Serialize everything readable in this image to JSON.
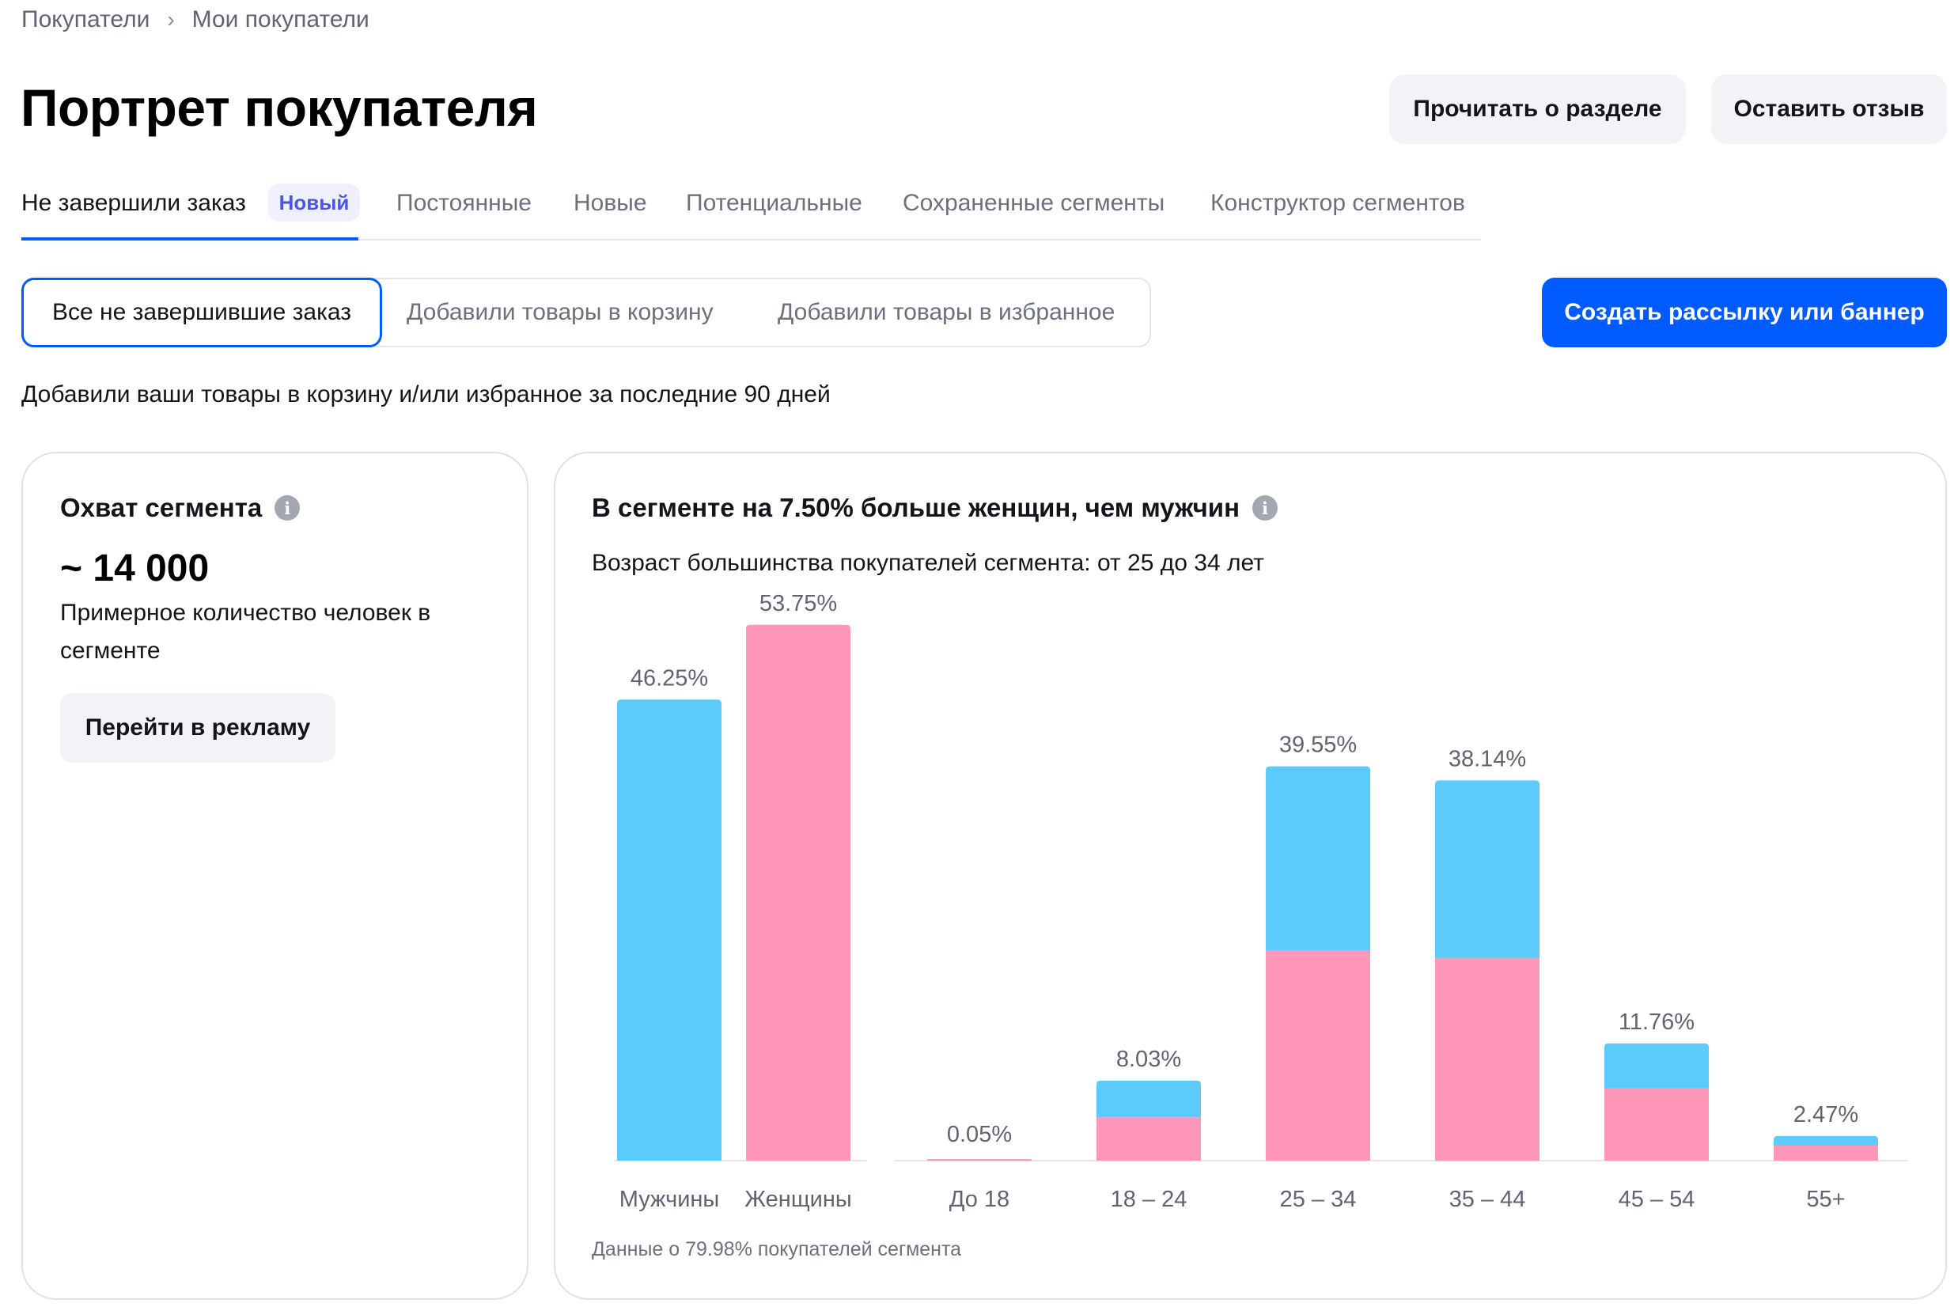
{
  "breadcrumb": {
    "items": [
      "Покупатели",
      "Мои покупатели"
    ],
    "separator": "›"
  },
  "header": {
    "title": "Портрет покупателя",
    "read_button": "Прочитать о разделе",
    "feedback_button": "Оставить отзыв"
  },
  "tabs": {
    "items": [
      "Не завершили заказ",
      "Постоянные",
      "Новые",
      "Потенциальные",
      "Сохраненные сегменты",
      "Конструктор сегментов"
    ],
    "active_index": 0,
    "new_badge": "Новый"
  },
  "segments": {
    "items": [
      "Все не завершившие заказ",
      "Добавили товары в корзину",
      "Добавили товары в избранное"
    ],
    "active_index": 0
  },
  "create_button": "Создать рассылку или баннер",
  "description": "Добавили ваши товары в корзину и/или избранное за последние 90 дней",
  "reach_card": {
    "title": "Охват сегмента",
    "info_icon": "info-icon",
    "value": "~ 14 000",
    "description": "Примерное количество человек в сегменте",
    "ads_button": "Перейти в рекламу"
  },
  "chart_card": {
    "title": "В сегменте на 7.50% больше женщин, чем мужчин",
    "info_icon": "info-icon",
    "subtitle": "Возраст большинства покупателей сегмента: от 25 до 34 лет",
    "footnote": "Данные о 79.98% покупателей сегмента"
  },
  "colors": {
    "accent": "#005bff",
    "male": "#5ccafa",
    "female": "#fe97b8",
    "badge_text": "#4a56e2"
  },
  "chart_data": [
    {
      "type": "bar",
      "categories": [
        "Мужчины",
        "Женщины"
      ],
      "values": [
        46.25,
        53.75
      ],
      "labels": [
        "46.25%",
        "53.75%"
      ],
      "colors": [
        "#5ccafa",
        "#fe97b8"
      ]
    },
    {
      "type": "bar",
      "stacked": true,
      "categories": [
        "До 18",
        "18 – 24",
        "25 – 34",
        "35 – 44",
        "45 – 54",
        "55+"
      ],
      "totals": [
        0.05,
        8.03,
        39.55,
        38.14,
        11.76,
        2.47
      ],
      "labels": [
        "0.05%",
        "8.03%",
        "39.55%",
        "38.14%",
        "11.76%",
        "2.47%"
      ],
      "series": [
        {
          "color": "#fe97b8",
          "values": [
            0.05,
            4.35,
            21.05,
            20.35,
            7.25,
            1.55
          ]
        },
        {
          "color": "#5ccafa",
          "values": [
            0.0,
            3.68,
            18.5,
            17.79,
            4.51,
            0.92
          ]
        }
      ]
    }
  ]
}
